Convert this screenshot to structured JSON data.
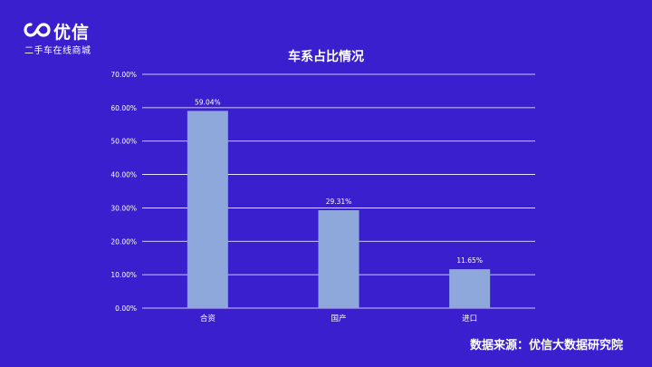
{
  "brand": {
    "name": "优信",
    "tagline": "二手车在线商城"
  },
  "source_note": "数据来源：优信大数据研究院",
  "colors": {
    "background": "#3a1fcf",
    "bar": "#8fa8dc",
    "grid": "#ffffff",
    "text": "#ffffff"
  },
  "chart_data": {
    "type": "bar",
    "title": "车系占比情况",
    "xlabel": "",
    "ylabel": "",
    "categories": [
      "合资",
      "国产",
      "进口"
    ],
    "values": [
      59.04,
      29.31,
      11.65
    ],
    "value_labels": [
      "59.04%",
      "29.31%",
      "11.65%"
    ],
    "ylim": [
      0,
      70
    ],
    "yticks": [
      0,
      10,
      20,
      30,
      40,
      50,
      60,
      70
    ],
    "ytick_labels": [
      "0.00%",
      "10.00%",
      "20.00%",
      "30.00%",
      "40.00%",
      "50.00%",
      "60.00%",
      "70.00%"
    ],
    "grid": true,
    "legend": "none"
  }
}
